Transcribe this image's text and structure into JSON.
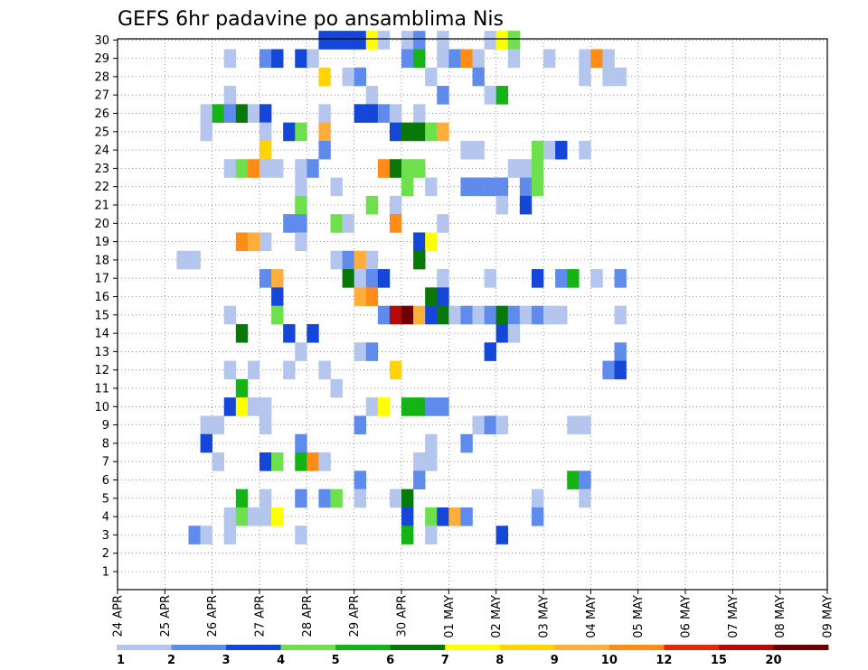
{
  "chart_data": {
    "type": "heatmap",
    "title": "GEFS 6hr padavine po ansamblima Nis",
    "xlabel": "",
    "ylabel": "",
    "x_tick_labels": [
      "24 APR",
      "25 APR",
      "26 APR",
      "27 APR",
      "28 APR",
      "29 APR",
      "30 APR",
      "01 MAY",
      "02 MAY",
      "03 MAY",
      "04 MAY",
      "05 MAY",
      "06 MAY",
      "07 MAY",
      "08 MAY",
      "09 MAY"
    ],
    "y_tick_labels": [
      "1",
      "2",
      "3",
      "4",
      "5",
      "6",
      "7",
      "8",
      "9",
      "10",
      "11",
      "12",
      "13",
      "14",
      "15",
      "16",
      "17",
      "18",
      "19",
      "20",
      "21",
      "22",
      "23",
      "24",
      "25",
      "26",
      "27",
      "28",
      "29",
      "30"
    ],
    "legend": {
      "labels": [
        "1",
        "2",
        "3",
        "4",
        "5",
        "6",
        "7",
        "8",
        "9",
        "10",
        "12",
        "15",
        "20"
      ],
      "colors": [
        "#b4c6ee",
        "#5f8cec",
        "#1446d8",
        "#6ee04e",
        "#14b414",
        "#087808",
        "#ffff00",
        "#ffd400",
        "#ffae3c",
        "#ff8c14",
        "#e22a0a",
        "#b40a0a",
        "#6e0000"
      ]
    },
    "grid": true,
    "legend_placement": "bottom",
    "time_steps_per_day": 4,
    "cells": [
      [
        30,
        17,
        3
      ],
      [
        30,
        18,
        3
      ],
      [
        30,
        19,
        3
      ],
      [
        30,
        20,
        3
      ],
      [
        30,
        21,
        7
      ],
      [
        30,
        22,
        1
      ],
      [
        30,
        24,
        1
      ],
      [
        30,
        25,
        2
      ],
      [
        30,
        27,
        1
      ],
      [
        30,
        31,
        1
      ],
      [
        30,
        32,
        7
      ],
      [
        30,
        33,
        4
      ],
      [
        29,
        9,
        1
      ],
      [
        29,
        12,
        2
      ],
      [
        29,
        13,
        3
      ],
      [
        29,
        15,
        3
      ],
      [
        29,
        16,
        1
      ],
      [
        29,
        24,
        2
      ],
      [
        29,
        25,
        5
      ],
      [
        29,
        27,
        1
      ],
      [
        29,
        28,
        2
      ],
      [
        29,
        29,
        10
      ],
      [
        29,
        30,
        1
      ],
      [
        29,
        33,
        1
      ],
      [
        29,
        36,
        1
      ],
      [
        29,
        39,
        1
      ],
      [
        29,
        40,
        10
      ],
      [
        29,
        41,
        1
      ],
      [
        28,
        17,
        8
      ],
      [
        28,
        19,
        1
      ],
      [
        28,
        20,
        2
      ],
      [
        28,
        26,
        1
      ],
      [
        28,
        30,
        2
      ],
      [
        28,
        39,
        1
      ],
      [
        28,
        41,
        1
      ],
      [
        28,
        42,
        1
      ],
      [
        27,
        9,
        1
      ],
      [
        27,
        21,
        1
      ],
      [
        27,
        27,
        2
      ],
      [
        27,
        31,
        1
      ],
      [
        27,
        32,
        5
      ],
      [
        26,
        7,
        1
      ],
      [
        26,
        8,
        5
      ],
      [
        26,
        9,
        2
      ],
      [
        26,
        10,
        6
      ],
      [
        26,
        11,
        1
      ],
      [
        26,
        12,
        3
      ],
      [
        26,
        17,
        1
      ],
      [
        26,
        20,
        3
      ],
      [
        26,
        21,
        3
      ],
      [
        26,
        22,
        2
      ],
      [
        26,
        23,
        1
      ],
      [
        26,
        25,
        1
      ],
      [
        25,
        7,
        1
      ],
      [
        25,
        12,
        1
      ],
      [
        25,
        14,
        3
      ],
      [
        25,
        15,
        4
      ],
      [
        25,
        17,
        9
      ],
      [
        25,
        23,
        3
      ],
      [
        25,
        24,
        6
      ],
      [
        25,
        25,
        6
      ],
      [
        25,
        26,
        4
      ],
      [
        25,
        27,
        9
      ],
      [
        24,
        12,
        8
      ],
      [
        24,
        17,
        2
      ],
      [
        24,
        29,
        1
      ],
      [
        24,
        30,
        1
      ],
      [
        24,
        35,
        4
      ],
      [
        24,
        36,
        1
      ],
      [
        24,
        37,
        3
      ],
      [
        24,
        39,
        1
      ],
      [
        23,
        9,
        1
      ],
      [
        23,
        10,
        4
      ],
      [
        23,
        11,
        10
      ],
      [
        23,
        12,
        1
      ],
      [
        23,
        13,
        1
      ],
      [
        23,
        15,
        1
      ],
      [
        23,
        16,
        2
      ],
      [
        23,
        22,
        10
      ],
      [
        23,
        23,
        6
      ],
      [
        23,
        24,
        4
      ],
      [
        23,
        25,
        4
      ],
      [
        23,
        33,
        1
      ],
      [
        23,
        34,
        1
      ],
      [
        23,
        35,
        4
      ],
      [
        22,
        15,
        1
      ],
      [
        22,
        18,
        1
      ],
      [
        22,
        24,
        4
      ],
      [
        22,
        26,
        1
      ],
      [
        22,
        29,
        2
      ],
      [
        22,
        30,
        2
      ],
      [
        22,
        31,
        2
      ],
      [
        22,
        32,
        2
      ],
      [
        22,
        34,
        2
      ],
      [
        22,
        35,
        4
      ],
      [
        21,
        15,
        4
      ],
      [
        21,
        21,
        4
      ],
      [
        21,
        23,
        1
      ],
      [
        21,
        32,
        1
      ],
      [
        21,
        34,
        3
      ],
      [
        20,
        14,
        2
      ],
      [
        20,
        15,
        2
      ],
      [
        20,
        18,
        4
      ],
      [
        20,
        19,
        1
      ],
      [
        20,
        23,
        10
      ],
      [
        20,
        27,
        1
      ],
      [
        19,
        10,
        10
      ],
      [
        19,
        11,
        9
      ],
      [
        19,
        12,
        1
      ],
      [
        19,
        15,
        1
      ],
      [
        19,
        25,
        3
      ],
      [
        19,
        26,
        7
      ],
      [
        18,
        5,
        1
      ],
      [
        18,
        6,
        1
      ],
      [
        18,
        18,
        1
      ],
      [
        18,
        19,
        2
      ],
      [
        18,
        20,
        9
      ],
      [
        18,
        21,
        1
      ],
      [
        18,
        25,
        6
      ],
      [
        17,
        12,
        2
      ],
      [
        17,
        13,
        9
      ],
      [
        17,
        19,
        6
      ],
      [
        17,
        20,
        1
      ],
      [
        17,
        21,
        2
      ],
      [
        17,
        22,
        3
      ],
      [
        17,
        27,
        1
      ],
      [
        17,
        31,
        1
      ],
      [
        17,
        35,
        3
      ],
      [
        17,
        37,
        2
      ],
      [
        17,
        38,
        5
      ],
      [
        17,
        40,
        1
      ],
      [
        17,
        42,
        2
      ],
      [
        16,
        13,
        3
      ],
      [
        16,
        20,
        9
      ],
      [
        16,
        21,
        10
      ],
      [
        16,
        26,
        6
      ],
      [
        16,
        27,
        3
      ],
      [
        15,
        9,
        1
      ],
      [
        15,
        13,
        4
      ],
      [
        15,
        22,
        2
      ],
      [
        15,
        23,
        12
      ],
      [
        15,
        24,
        15
      ],
      [
        15,
        25,
        9
      ],
      [
        15,
        26,
        3
      ],
      [
        15,
        27,
        6
      ],
      [
        15,
        28,
        1
      ],
      [
        15,
        29,
        2
      ],
      [
        15,
        30,
        1
      ],
      [
        15,
        31,
        2
      ],
      [
        15,
        32,
        6
      ],
      [
        15,
        33,
        2
      ],
      [
        15,
        34,
        1
      ],
      [
        15,
        35,
        2
      ],
      [
        15,
        36,
        1
      ],
      [
        15,
        37,
        1
      ],
      [
        15,
        42,
        1
      ],
      [
        14,
        10,
        6
      ],
      [
        14,
        14,
        3
      ],
      [
        14,
        16,
        3
      ],
      [
        14,
        32,
        3
      ],
      [
        14,
        33,
        1
      ],
      [
        13,
        15,
        1
      ],
      [
        13,
        20,
        1
      ],
      [
        13,
        21,
        2
      ],
      [
        13,
        31,
        3
      ],
      [
        13,
        42,
        2
      ],
      [
        12,
        9,
        1
      ],
      [
        12,
        11,
        1
      ],
      [
        12,
        14,
        1
      ],
      [
        12,
        17,
        1
      ],
      [
        12,
        23,
        8
      ],
      [
        12,
        41,
        2
      ],
      [
        12,
        42,
        3
      ],
      [
        11,
        10,
        5
      ],
      [
        11,
        18,
        1
      ],
      [
        10,
        9,
        3
      ],
      [
        10,
        10,
        7
      ],
      [
        10,
        11,
        1
      ],
      [
        10,
        12,
        1
      ],
      [
        10,
        21,
        1
      ],
      [
        10,
        22,
        7
      ],
      [
        10,
        24,
        5
      ],
      [
        10,
        25,
        5
      ],
      [
        10,
        26,
        2
      ],
      [
        10,
        27,
        2
      ],
      [
        9,
        7,
        1
      ],
      [
        9,
        8,
        1
      ],
      [
        9,
        12,
        1
      ],
      [
        9,
        20,
        2
      ],
      [
        9,
        30,
        1
      ],
      [
        9,
        31,
        2
      ],
      [
        9,
        32,
        1
      ],
      [
        9,
        38,
        1
      ],
      [
        9,
        39,
        1
      ],
      [
        8,
        7,
        3
      ],
      [
        8,
        15,
        2
      ],
      [
        8,
        26,
        1
      ],
      [
        8,
        29,
        2
      ],
      [
        7,
        8,
        1
      ],
      [
        7,
        12,
        3
      ],
      [
        7,
        13,
        4
      ],
      [
        7,
        15,
        5
      ],
      [
        7,
        16,
        10
      ],
      [
        7,
        17,
        1
      ],
      [
        7,
        25,
        1
      ],
      [
        7,
        26,
        1
      ],
      [
        6,
        20,
        2
      ],
      [
        6,
        25,
        2
      ],
      [
        6,
        38,
        5
      ],
      [
        6,
        39,
        2
      ],
      [
        5,
        10,
        5
      ],
      [
        5,
        12,
        1
      ],
      [
        5,
        15,
        2
      ],
      [
        5,
        17,
        2
      ],
      [
        5,
        18,
        4
      ],
      [
        5,
        20,
        1
      ],
      [
        5,
        23,
        1
      ],
      [
        5,
        24,
        6
      ],
      [
        5,
        35,
        1
      ],
      [
        5,
        39,
        1
      ],
      [
        4,
        9,
        1
      ],
      [
        4,
        10,
        4
      ],
      [
        4,
        11,
        1
      ],
      [
        4,
        12,
        1
      ],
      [
        4,
        13,
        7
      ],
      [
        4,
        24,
        3
      ],
      [
        4,
        26,
        4
      ],
      [
        4,
        27,
        3
      ],
      [
        4,
        28,
        9
      ],
      [
        4,
        29,
        2
      ],
      [
        4,
        35,
        2
      ],
      [
        3,
        6,
        2
      ],
      [
        3,
        7,
        1
      ],
      [
        3,
        9,
        1
      ],
      [
        3,
        15,
        1
      ],
      [
        3,
        24,
        5
      ],
      [
        3,
        26,
        1
      ],
      [
        3,
        32,
        3
      ]
    ]
  }
}
